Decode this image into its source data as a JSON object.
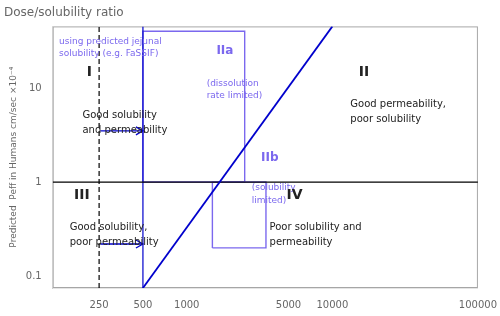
{
  "chart_data": {
    "type": "line",
    "title": "Dose/solubility ratio",
    "ylabel": "Predicted  Peff in Humans cm/sec ×10⁻⁴",
    "log": true,
    "grid": false,
    "xlim": [
      120,
      100000
    ],
    "ylim": [
      0.075,
      45
    ],
    "xticks": [
      250,
      500,
      1000,
      5000,
      10000,
      100000
    ],
    "yticks": [
      0.1,
      1,
      10
    ],
    "series": [
      {
        "x": [
          500,
          10000
        ],
        "values": [
          0.075,
          45
        ],
        "color": "#0000CC"
      }
    ],
    "reference_lines": [
      {
        "axis": "y",
        "value": 1.0,
        "color": "black",
        "line_style": "solid"
      },
      {
        "axis": "x",
        "value": 250,
        "color": "black",
        "line_style": "dashed"
      },
      {
        "axis": "x",
        "value": 500,
        "color": "#0000CC",
        "line_style": "solid"
      }
    ],
    "arrows": [
      {
        "x": [
          255,
          500
        ],
        "y": 3.5,
        "color": "#0000CC"
      },
      {
        "x": [
          255,
          500
        ],
        "y": 0.22,
        "color": "#0000CC"
      }
    ],
    "boxes": [
      {
        "x": [
          500,
          2500
        ],
        "y": [
          1.0,
          40
        ],
        "color": "#7B68EE"
      },
      {
        "x": [
          1500,
          3500
        ],
        "y": [
          0.2,
          1.0
        ],
        "color": "#7B68EE"
      }
    ],
    "annotations": [
      {
        "text": "using predicted jejunal\nsolubility (e.g. FaSSIF)",
        "color": "#7B68EE"
      },
      {
        "text": "I",
        "color": "#222222"
      },
      {
        "text": "Good solubility\nand permeability",
        "color": "#222222"
      },
      {
        "text": "II",
        "color": "#222222"
      },
      {
        "text": "Good permeability,\npoor solubility",
        "color": "#222222"
      },
      {
        "text": "IIa",
        "color": "#7B68EE"
      },
      {
        "text": "(dissolution\nrate limited)",
        "color": "#7B68EE"
      },
      {
        "text": "IIb",
        "color": "#7B68EE"
      },
      {
        "text": "(solubility\nlimited)",
        "color": "#7B68EE"
      },
      {
        "text": "III",
        "color": "#222222"
      },
      {
        "text": "Good solubility,\npoor permeability",
        "color": "#222222"
      },
      {
        "text": "IV",
        "color": "#222222"
      },
      {
        "text": "Poor solubility and\npermeability",
        "color": "#222222"
      }
    ]
  }
}
